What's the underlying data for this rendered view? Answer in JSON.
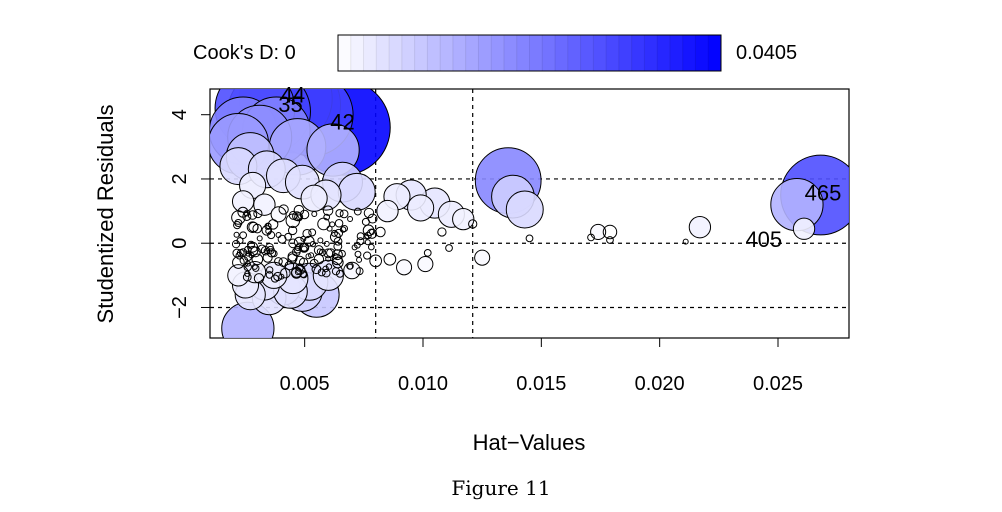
{
  "caption": "Figure 11",
  "chart_data": {
    "type": "scatter",
    "title": "",
    "xlabel": "Hat−Values",
    "ylabel": "Studentized Residuals",
    "xlim": [
      0.001,
      0.028
    ],
    "ylim": [
      -2.95,
      4.8
    ],
    "xticks": [
      0.005,
      0.01,
      0.015,
      0.02,
      0.025
    ],
    "xtick_labels": [
      "0.005",
      "0.010",
      "0.015",
      "0.020",
      "0.025"
    ],
    "yticks": [
      -2,
      0,
      2,
      4
    ],
    "ytick_labels": [
      "−2",
      "0",
      "2",
      "4"
    ],
    "reference_lines": {
      "horizontal": [
        -2,
        0,
        2
      ],
      "vertical": [
        0.008,
        0.0121
      ]
    },
    "size_scale": {
      "label": "Cook's D: 0",
      "max_label": "0.0405",
      "min": 0,
      "max": 0.0405,
      "color_low": "#ffffff",
      "color_high": "#0000ff"
    },
    "labeled_points": [
      {
        "label": "44",
        "x": 0.0045,
        "y": 4.6,
        "cooks_d": 0.0405
      },
      {
        "label": "35",
        "x": 0.0044,
        "y": 4.3,
        "cooks_d": 0.035
      },
      {
        "label": "42",
        "x": 0.0066,
        "y": 3.75,
        "cooks_d": 0.04
      },
      {
        "label": "465",
        "x": 0.0269,
        "y": 1.55,
        "cooks_d": 0.028
      },
      {
        "label": "405",
        "x": 0.0244,
        "y": 0.1,
        "cooks_d": 0.0003
      }
    ],
    "points": [
      {
        "x": 0.0268,
        "y": 1.5,
        "d": 0.028
      },
      {
        "x": 0.0258,
        "y": 1.2,
        "d": 0.012
      },
      {
        "x": 0.0261,
        "y": 0.45,
        "d": 0.002
      },
      {
        "x": 0.0136,
        "y": 1.95,
        "d": 0.019
      },
      {
        "x": 0.0138,
        "y": 1.45,
        "d": 0.008
      },
      {
        "x": 0.0143,
        "y": 1.05,
        "d": 0.006
      },
      {
        "x": 0.0105,
        "y": 1.25,
        "d": 0.004
      },
      {
        "x": 0.0095,
        "y": 1.5,
        "d": 0.004
      },
      {
        "x": 0.0089,
        "y": 1.45,
        "d": 0.003
      },
      {
        "x": 0.0112,
        "y": 0.9,
        "d": 0.003
      },
      {
        "x": 0.0117,
        "y": 0.75,
        "d": 0.002
      },
      {
        "x": 0.0099,
        "y": 1.1,
        "d": 0.003
      },
      {
        "x": 0.0217,
        "y": 0.5,
        "d": 0.002
      },
      {
        "x": 0.0174,
        "y": 0.35,
        "d": 0.001
      },
      {
        "x": 0.0179,
        "y": 0.35,
        "d": 0.0008
      },
      {
        "x": 0.0211,
        "y": 0.05,
        "d": 0.0001
      },
      {
        "x": 0.0145,
        "y": 0.15,
        "d": 0.0002
      },
      {
        "x": 0.0179,
        "y": 0.1,
        "d": 0.0002
      },
      {
        "x": 0.0171,
        "y": 0.18,
        "d": 0.0002
      },
      {
        "x": 0.0125,
        "y": -0.45,
        "d": 0.001
      },
      {
        "x": 0.0101,
        "y": -0.65,
        "d": 0.001
      },
      {
        "x": 0.0092,
        "y": -0.75,
        "d": 0.001
      },
      {
        "x": 0.0086,
        "y": -0.5,
        "d": 0.0006
      },
      {
        "x": 0.008,
        "y": -0.55,
        "d": 0.0006
      },
      {
        "x": 0.007,
        "y": -0.85,
        "d": 0.0012
      },
      {
        "x": 0.0061,
        "y": -0.3,
        "d": 0.0003
      },
      {
        "x": 0.0111,
        "y": -0.15,
        "d": 0.0002
      },
      {
        "x": 0.0102,
        "y": -0.3,
        "d": 0.0002
      },
      {
        "x": 0.0082,
        "y": 0.35,
        "d": 0.0004
      },
      {
        "x": 0.0077,
        "y": 0.4,
        "d": 0.0005
      },
      {
        "x": 0.0108,
        "y": 0.35,
        "d": 0.0003
      },
      {
        "x": 0.0121,
        "y": 0.6,
        "d": 0.0003
      },
      {
        "x": 0.0085,
        "y": 1.0,
        "d": 0.002
      },
      {
        "x": 0.0072,
        "y": 1.6,
        "d": 0.006
      },
      {
        "x": 0.0066,
        "y": 1.9,
        "d": 0.007
      },
      {
        "x": 0.0059,
        "y": 1.5,
        "d": 0.004
      },
      {
        "x": 0.0062,
        "y": 2.9,
        "d": 0.012
      },
      {
        "x": 0.0066,
        "y": 3.6,
        "d": 0.04
      },
      {
        "x": 0.0053,
        "y": 4.0,
        "d": 0.03
      },
      {
        "x": 0.0045,
        "y": 4.3,
        "d": 0.04
      },
      {
        "x": 0.0042,
        "y": 4.5,
        "d": 0.038
      },
      {
        "x": 0.0035,
        "y": 4.1,
        "d": 0.03
      },
      {
        "x": 0.0029,
        "y": 4.2,
        "d": 0.028
      },
      {
        "x": 0.0024,
        "y": 3.5,
        "d": 0.02
      },
      {
        "x": 0.0022,
        "y": 3.1,
        "d": 0.016
      },
      {
        "x": 0.0031,
        "y": 3.3,
        "d": 0.018
      },
      {
        "x": 0.0038,
        "y": 3.5,
        "d": 0.02
      },
      {
        "x": 0.0047,
        "y": 3.0,
        "d": 0.014
      },
      {
        "x": 0.0027,
        "y": 2.7,
        "d": 0.01
      },
      {
        "x": 0.0022,
        "y": 2.4,
        "d": 0.006
      },
      {
        "x": 0.0034,
        "y": 2.3,
        "d": 0.006
      },
      {
        "x": 0.0041,
        "y": 2.1,
        "d": 0.005
      },
      {
        "x": 0.0049,
        "y": 1.9,
        "d": 0.005
      },
      {
        "x": 0.0054,
        "y": 1.4,
        "d": 0.003
      },
      {
        "x": 0.0028,
        "y": 1.8,
        "d": 0.003
      },
      {
        "x": 0.0024,
        "y": 1.3,
        "d": 0.002
      },
      {
        "x": 0.0033,
        "y": 1.2,
        "d": 0.002
      },
      {
        "x": 0.0039,
        "y": 0.9,
        "d": 0.001
      },
      {
        "x": 0.0045,
        "y": 0.7,
        "d": 0.0008
      },
      {
        "x": 0.0022,
        "y": 0.8,
        "d": 0.0008
      },
      {
        "x": 0.0028,
        "y": 0.5,
        "d": 0.0005
      },
      {
        "x": 0.0034,
        "y": 0.4,
        "d": 0.0004
      },
      {
        "x": 0.0051,
        "y": 0.3,
        "d": 0.0003
      },
      {
        "x": 0.0058,
        "y": 0.6,
        "d": 0.0006
      },
      {
        "x": 0.0024,
        "y": 0.25,
        "d": 0.0002
      },
      {
        "x": 0.0031,
        "y": 0.15,
        "d": 0.0001
      },
      {
        "x": 0.0043,
        "y": 0.2,
        "d": 0.0002
      },
      {
        "x": 0.0026,
        "y": -0.2,
        "d": 0.0002
      },
      {
        "x": 0.0036,
        "y": -0.3,
        "d": 0.0003
      },
      {
        "x": 0.0047,
        "y": -0.2,
        "d": 0.0002
      },
      {
        "x": 0.0022,
        "y": -0.6,
        "d": 0.0006
      },
      {
        "x": 0.0029,
        "y": -0.9,
        "d": 0.002
      },
      {
        "x": 0.0037,
        "y": -1.0,
        "d": 0.003
      },
      {
        "x": 0.0045,
        "y": -1.1,
        "d": 0.004
      },
      {
        "x": 0.0052,
        "y": -1.2,
        "d": 0.006
      },
      {
        "x": 0.0055,
        "y": -1.6,
        "d": 0.009
      },
      {
        "x": 0.0049,
        "y": -1.5,
        "d": 0.007
      },
      {
        "x": 0.0041,
        "y": -1.4,
        "d": 0.005
      },
      {
        "x": 0.0033,
        "y": -1.3,
        "d": 0.004
      },
      {
        "x": 0.0025,
        "y": -1.3,
        "d": 0.003
      },
      {
        "x": 0.0022,
        "y": -1.0,
        "d": 0.002
      },
      {
        "x": 0.0027,
        "y": -1.6,
        "d": 0.004
      },
      {
        "x": 0.0035,
        "y": -1.7,
        "d": 0.005
      },
      {
        "x": 0.0044,
        "y": -1.5,
        "d": 0.005
      },
      {
        "x": 0.006,
        "y": -1.0,
        "d": 0.004
      },
      {
        "x": 0.0026,
        "y": -2.65,
        "d": 0.012
      },
      {
        "x": 0.0023,
        "y": -0.3,
        "d": 0.0002
      },
      {
        "x": 0.003,
        "y": -0.5,
        "d": 0.0005
      },
      {
        "x": 0.0056,
        "y": -0.5,
        "d": 0.0004
      },
      {
        "x": 0.0064,
        "y": -0.6,
        "d": 0.0005
      }
    ]
  }
}
